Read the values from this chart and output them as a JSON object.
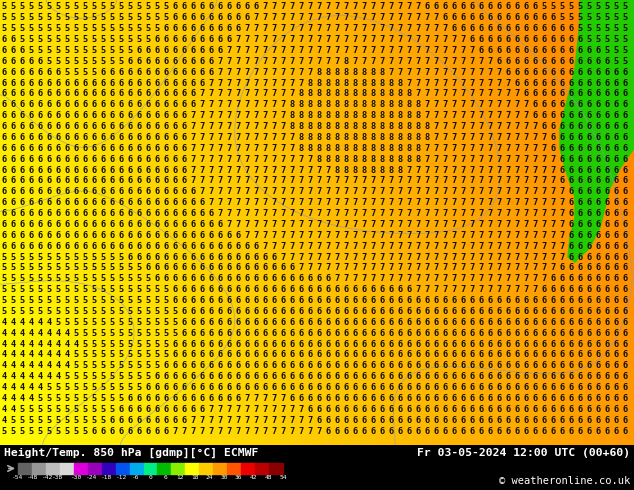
{
  "title_left": "Height/Temp. 850 hPa [gdmp][°C] ECMWF",
  "title_right": "Fr 03-05-2024 12:00 UTC (00+60)",
  "copyright": "© weatheronline.co.uk",
  "colorbar_boundaries": [
    -54,
    -48,
    -42,
    -38,
    -30,
    -24,
    -18,
    -12,
    -6,
    0,
    6,
    12,
    18,
    24,
    30,
    36,
    42,
    48,
    54
  ],
  "colorbar_tick_labels": [
    "-54",
    "-48",
    "-42",
    "-38",
    "-30",
    "-24",
    "-18",
    "-12",
    "-6",
    "0",
    "6",
    "12",
    "18",
    "24",
    "30",
    "36",
    "42",
    "48",
    "54"
  ],
  "colorbar_colors": [
    "#636363",
    "#969696",
    "#bdbdbd",
    "#d9d9d9",
    "#dd00dd",
    "#9900bb",
    "#3300bb",
    "#0055ee",
    "#00aaee",
    "#00ee88",
    "#00bb00",
    "#88ee00",
    "#ffff00",
    "#ffcc00",
    "#ff9900",
    "#ff5500",
    "#ee0000",
    "#bb0000",
    "#880000"
  ],
  "bg_gradient_colors": [
    "#ffff00",
    "#ffcc00",
    "#ff9900",
    "#ff6600"
  ],
  "green_color": "#22cc00",
  "figsize": [
    6.34,
    4.9
  ],
  "dpi": 100
}
